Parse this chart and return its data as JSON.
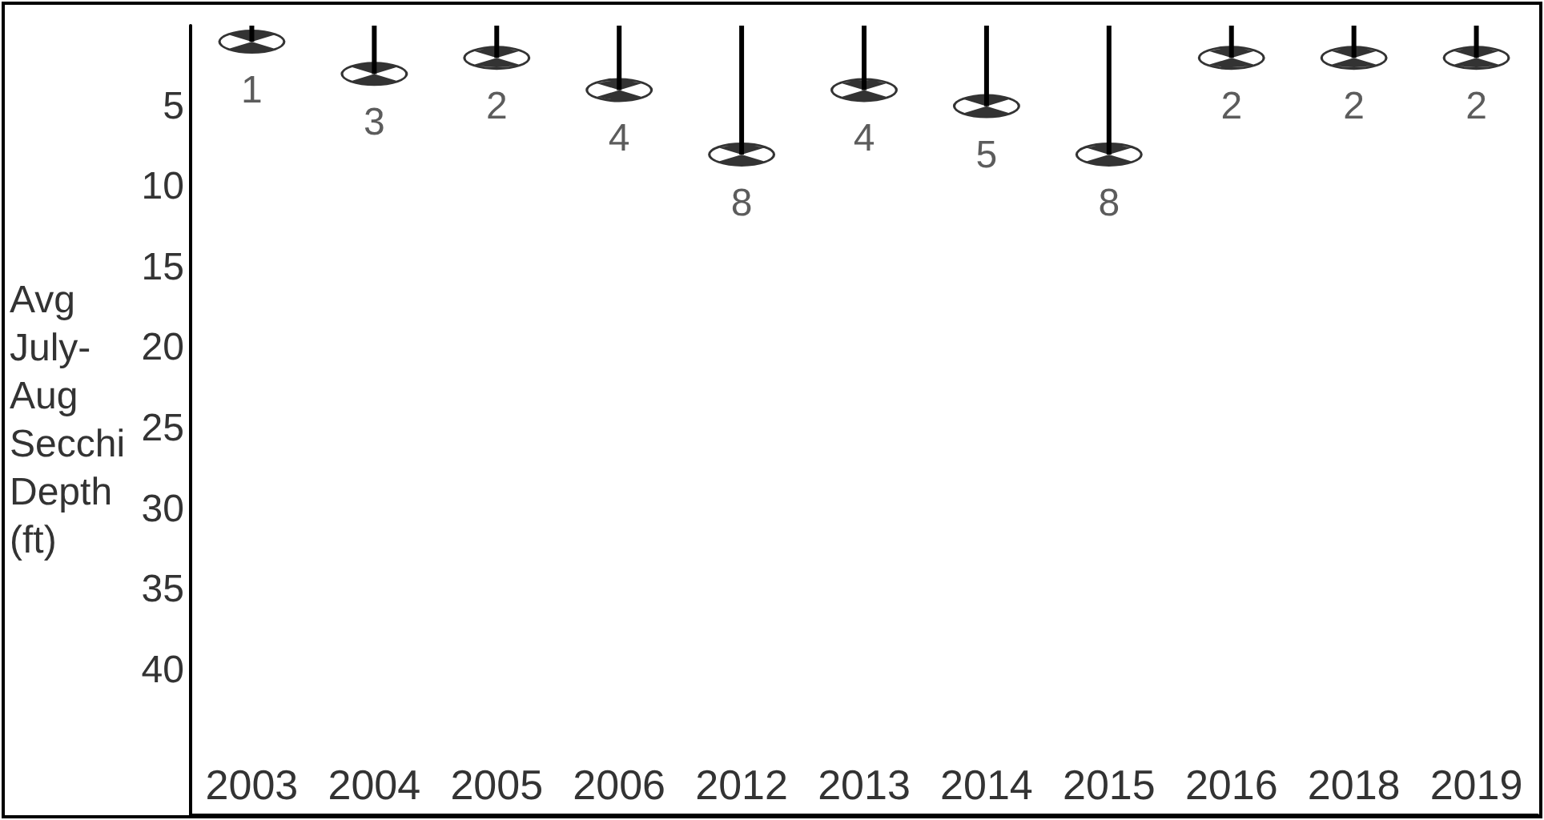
{
  "chart_data": {
    "type": "lollipop",
    "ylabel": "Avg July-Aug Secchi Depth (ft)",
    "categories": [
      "2003",
      "2004",
      "2005",
      "2006",
      "2012",
      "2013",
      "2014",
      "2015",
      "2016",
      "2018",
      "2019"
    ],
    "values": [
      1,
      3,
      2,
      4,
      8,
      4,
      5,
      8,
      2,
      2,
      2
    ],
    "color": "#000000",
    "ylim": [
      49,
      0
    ],
    "yticks": [
      5,
      10,
      15,
      20,
      25,
      30,
      35,
      40
    ],
    "marker": "circle",
    "data_labels": true
  }
}
